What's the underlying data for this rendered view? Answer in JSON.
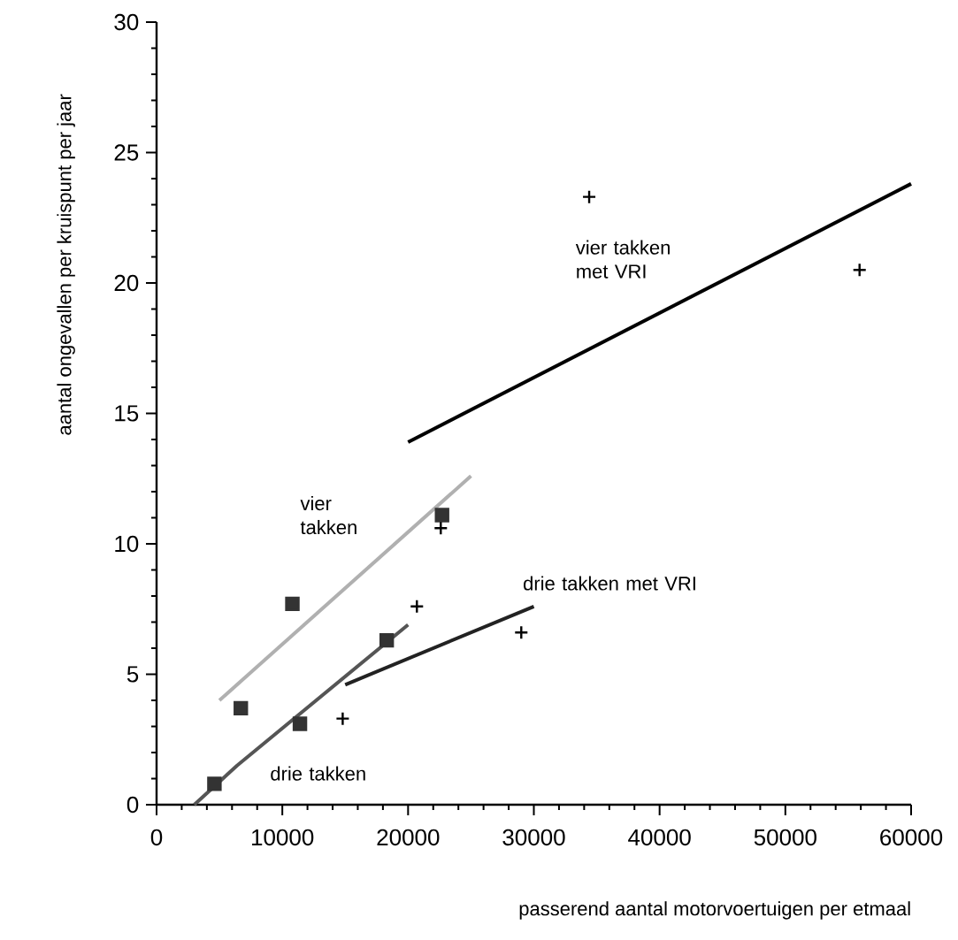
{
  "chart_data": {
    "type": "scatter",
    "xlabel": "passerend aantal motorvoertuigen per etmaal",
    "ylabel": "aantal ongevallen per kruispunt per jaar",
    "xlim": [
      0,
      60000
    ],
    "ylim": [
      0,
      30
    ],
    "xticks": [
      0,
      10000,
      20000,
      30000,
      40000,
      50000,
      60000
    ],
    "yticks": [
      0,
      5,
      10,
      15,
      20,
      25,
      30
    ],
    "series": [
      {
        "marker": "square",
        "color": "#333333",
        "x": [
          4600,
          6700,
          10800,
          11400,
          18300,
          22700
        ],
        "values": [
          0.8,
          3.7,
          7.7,
          3.1,
          6.3,
          11.1
        ]
      },
      {
        "marker": "cross",
        "color": "#000000",
        "x": [
          14800,
          20700,
          29000
        ],
        "values": [
          3.3,
          7.6,
          6.6
        ]
      },
      {
        "marker": "cross",
        "color": "#000000",
        "x": [
          22600,
          34400,
          55900
        ],
        "values": [
          10.6,
          23.3,
          20.5
        ]
      },
      {
        "type": "line",
        "color": "#b0b0b0",
        "x": [
          5000,
          25000
        ],
        "values": [
          4.0,
          12.6
        ]
      },
      {
        "type": "line",
        "color": "#555555",
        "x": [
          3000,
          6400,
          20000
        ],
        "values": [
          0,
          1.5,
          6.9
        ]
      },
      {
        "type": "line",
        "color": "#222222",
        "x": [
          15000,
          30000
        ],
        "values": [
          4.6,
          7.6
        ]
      },
      {
        "type": "line",
        "color": "#000000",
        "x": [
          20000,
          60000
        ],
        "values": [
          13.9,
          23.8
        ]
      }
    ],
    "annotations": [
      "vier takken",
      "drie takken",
      "drie takken met VRI",
      "vier takken met VRI"
    ]
  }
}
